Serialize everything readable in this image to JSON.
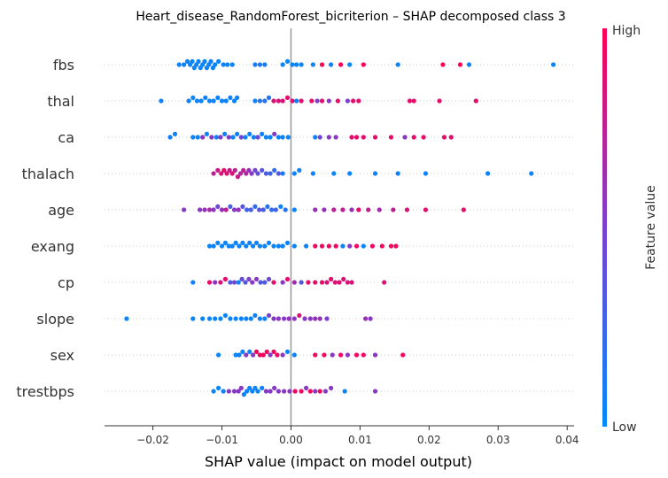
{
  "chart_data": {
    "type": "scatter",
    "subtype": "shap-beeswarm",
    "title": "Heart_disease_RandomForest_bicriterion – SHAP decomposed class 3",
    "xlabel": "SHAP value (impact on model output)",
    "ylabel": "",
    "xlim": [
      -0.027,
      0.041
    ],
    "xticks": [
      -0.02,
      -0.01,
      0.0,
      0.01,
      0.02,
      0.03,
      0.04
    ],
    "xtick_labels": [
      "−0.02",
      "−0.01",
      "0.00",
      "0.01",
      "0.02",
      "0.03",
      "0.04"
    ],
    "grid": false,
    "features": [
      "fbs",
      "thal",
      "ca",
      "thalach",
      "age",
      "exang",
      "cp",
      "slope",
      "sex",
      "trestbps"
    ],
    "colorbar": {
      "label": "Feature value",
      "high_label": "High",
      "low_label": "Low",
      "low_color": "#008bfb",
      "mid_color": "#7b3fd0",
      "high_color": "#ff0052"
    },
    "series": [
      {
        "feature": "fbs",
        "x": [
          -0.0162,
          -0.0155,
          -0.015,
          -0.0146,
          -0.0143,
          -0.014,
          -0.0137,
          -0.0134,
          -0.0131,
          -0.0128,
          -0.0125,
          -0.0122,
          -0.0119,
          -0.0116,
          -0.0113,
          -0.011,
          -0.0105,
          -0.0098,
          -0.0092,
          -0.0085,
          -0.0052,
          -0.0045,
          -0.0038,
          -0.0012,
          -0.0005,
          0.0002,
          0.0008,
          0.0015,
          0.0032,
          0.0045,
          0.0058,
          0.0072,
          0.0085,
          0.0105,
          0.0155,
          0.022,
          0.0245,
          0.0258,
          0.038
        ],
        "v": [
          0.05,
          0.05,
          0.05,
          0.05,
          0.05,
          0.05,
          0.05,
          0.05,
          0.05,
          0.05,
          0.05,
          0.05,
          0.05,
          0.05,
          0.05,
          0.05,
          0.05,
          0.05,
          0.05,
          0.05,
          0.1,
          0.1,
          0.1,
          0.05,
          0.05,
          0.05,
          0.05,
          0.05,
          0.05,
          1,
          0.05,
          1,
          0.05,
          1,
          0.05,
          1,
          1,
          0.05,
          0.05
        ]
      },
      {
        "feature": "thal",
        "x": [
          -0.0188,
          -0.0148,
          -0.0142,
          -0.0136,
          -0.013,
          -0.0124,
          -0.0118,
          -0.0112,
          -0.0106,
          -0.01,
          -0.0094,
          -0.0088,
          -0.0082,
          -0.0078,
          -0.0052,
          -0.0045,
          -0.0038,
          -0.0032,
          -0.0025,
          -0.0018,
          -0.0012,
          -0.0005,
          0.0002,
          0.0008,
          0.0015,
          0.003,
          0.0038,
          0.0045,
          0.0055,
          0.0068,
          0.0082,
          0.009,
          0.0098,
          0.0172,
          0.0178,
          0.0215,
          0.0268
        ],
        "v": [
          0.05,
          0.05,
          0.05,
          0.05,
          0.05,
          0.05,
          0.05,
          0.05,
          0.05,
          0.05,
          0.05,
          0.05,
          0.05,
          0.05,
          0.05,
          0.15,
          0.15,
          0.15,
          0.85,
          0.85,
          0.85,
          0.9,
          0.9,
          0.05,
          0.9,
          0.9,
          0.55,
          0.9,
          0.55,
          0.9,
          0.5,
          0.9,
          0.9,
          0.9,
          0.9,
          0.9,
          0.9
        ]
      },
      {
        "feature": "ca",
        "x": [
          -0.0175,
          -0.0168,
          -0.0142,
          -0.0135,
          -0.0128,
          -0.0122,
          -0.0115,
          -0.0108,
          -0.0102,
          -0.0096,
          -0.009,
          -0.0084,
          -0.0078,
          -0.0072,
          -0.0066,
          -0.006,
          -0.0054,
          -0.0048,
          -0.0042,
          -0.0036,
          -0.003,
          -0.0024,
          -0.0018,
          -0.0012,
          -0.0004,
          0.0035,
          0.0042,
          0.0055,
          0.0065,
          0.0088,
          0.0095,
          0.0105,
          0.0122,
          0.0145,
          0.0165,
          0.0178,
          0.0192,
          0.0222,
          0.0232
        ],
        "v": [
          0.05,
          0.05,
          0.05,
          0.05,
          0.55,
          0.05,
          0.55,
          0.05,
          0.55,
          0.05,
          0.55,
          0.05,
          0.05,
          0.45,
          0.05,
          0.05,
          0.05,
          0.45,
          0.05,
          0.05,
          0.05,
          0.55,
          0.05,
          0.05,
          0.05,
          0.05,
          0.45,
          0.55,
          0.55,
          0.9,
          0.9,
          0.9,
          0.9,
          0.9,
          0.55,
          0.9,
          0.9,
          0.9,
          0.9
        ]
      },
      {
        "feature": "thalach",
        "x": [
          -0.0112,
          -0.0106,
          -0.0101,
          -0.0097,
          -0.0093,
          -0.0089,
          -0.0085,
          -0.0081,
          -0.0077,
          -0.0073,
          -0.0069,
          -0.0065,
          -0.0061,
          -0.0057,
          -0.0052,
          -0.0048,
          -0.0042,
          -0.0036,
          -0.003,
          -0.0024,
          -0.0018,
          -0.0012,
          0.0005,
          0.0012,
          0.0032,
          0.0062,
          0.0085,
          0.0122,
          0.0155,
          0.0195,
          0.0285,
          0.0348
        ],
        "v": [
          0.75,
          0.8,
          0.85,
          0.9,
          0.85,
          0.8,
          0.85,
          0.75,
          0.8,
          0.7,
          0.75,
          0.7,
          0.6,
          0.55,
          0.45,
          0.4,
          0.35,
          0.3,
          0.25,
          0.2,
          0.35,
          0.1,
          0.05,
          0.05,
          0.05,
          0.05,
          0.05,
          0.05,
          0.05,
          0.05,
          0.05,
          0.05
        ]
      },
      {
        "feature": "age",
        "x": [
          -0.0155,
          -0.0132,
          -0.0125,
          -0.0118,
          -0.0112,
          -0.0106,
          -0.01,
          -0.0094,
          -0.0088,
          -0.0082,
          -0.0076,
          -0.007,
          -0.0064,
          -0.0058,
          -0.0052,
          -0.0046,
          -0.004,
          -0.0034,
          -0.0028,
          -0.0022,
          -0.0015,
          -0.0008,
          0.0005,
          0.0035,
          0.0048,
          0.0062,
          0.0075,
          0.0088,
          0.0098,
          0.0112,
          0.0128,
          0.0148,
          0.0168,
          0.0195,
          0.025
        ],
        "v": [
          0.55,
          0.55,
          0.6,
          0.65,
          0.55,
          0.45,
          0.6,
          0.75,
          0.3,
          0.55,
          0.6,
          0.35,
          0.25,
          0.3,
          0.2,
          0.35,
          0.3,
          0.15,
          0.2,
          0.25,
          0.05,
          0.15,
          0.05,
          0.6,
          0.6,
          0.75,
          0.75,
          0.6,
          0.9,
          0.75,
          0.65,
          0.75,
          0.85,
          0.9,
          0.9
        ]
      },
      {
        "feature": "exang",
        "x": [
          -0.0118,
          -0.0112,
          -0.0106,
          -0.01,
          -0.0095,
          -0.009,
          -0.0085,
          -0.008,
          -0.0075,
          -0.007,
          -0.0065,
          -0.006,
          -0.0055,
          -0.005,
          -0.0045,
          -0.0038,
          -0.0032,
          -0.0025,
          -0.0018,
          -0.0012,
          -0.0005,
          0.0005,
          0.0022,
          0.0035,
          0.0045,
          0.0055,
          0.0065,
          0.0075,
          0.0085,
          0.0095,
          0.0105,
          0.0118,
          0.0132,
          0.0145,
          0.0152
        ],
        "v": [
          0.05,
          0.05,
          0.05,
          0.05,
          0.05,
          0.05,
          0.05,
          0.05,
          0.05,
          0.05,
          0.05,
          0.05,
          0.05,
          0.05,
          0.05,
          0.05,
          0.05,
          0.05,
          0.05,
          0.05,
          0.05,
          0.05,
          0.05,
          0.95,
          0.95,
          0.95,
          0.95,
          0.05,
          0.55,
          0.95,
          0.05,
          0.95,
          0.95,
          0.95,
          0.95
        ]
      },
      {
        "feature": "cp",
        "x": [
          -0.0142,
          -0.0118,
          -0.011,
          -0.0102,
          -0.0095,
          -0.0088,
          -0.0082,
          -0.0076,
          -0.0071,
          -0.0066,
          -0.0061,
          -0.0056,
          -0.005,
          -0.0044,
          -0.0038,
          -0.0032,
          -0.0025,
          -0.0012,
          -0.0005,
          0.0005,
          0.0015,
          0.0025,
          0.0035,
          0.0045,
          0.0052,
          0.0058,
          0.0064,
          0.007,
          0.0076,
          0.0082,
          0.0088,
          0.0135
        ],
        "v": [
          0.05,
          0.9,
          0.55,
          0.85,
          0.9,
          0.35,
          0.45,
          0.05,
          0.4,
          0.35,
          0.5,
          0.55,
          0.55,
          0.35,
          0.3,
          0.45,
          0.9,
          0.55,
          0.9,
          0.65,
          0.35,
          0.9,
          0.9,
          0.9,
          0.85,
          0.9,
          0.85,
          0.9,
          0.85,
          0.85,
          0.85,
          0.85
        ]
      },
      {
        "feature": "slope",
        "x": [
          -0.0238,
          -0.0142,
          -0.0128,
          -0.0118,
          -0.011,
          -0.0102,
          -0.0095,
          -0.0088,
          -0.008,
          -0.0072,
          -0.0065,
          -0.0058,
          -0.0052,
          -0.0045,
          -0.0038,
          -0.0032,
          -0.0025,
          -0.0018,
          -0.001,
          -0.0003,
          0.0005,
          0.0012,
          0.002,
          0.0028,
          0.0035,
          0.0042,
          0.0052,
          0.0108,
          0.0115
        ],
        "v": [
          0.05,
          0.05,
          0.05,
          0.05,
          0.05,
          0.05,
          0.05,
          0.05,
          0.05,
          0.05,
          0.05,
          0.05,
          0.05,
          0.05,
          0.05,
          0.5,
          0.55,
          0.55,
          0.55,
          0.6,
          0.55,
          0.85,
          0.55,
          0.55,
          0.6,
          0.6,
          0.5,
          0.6,
          0.55
        ]
      },
      {
        "feature": "sex",
        "x": [
          -0.0105,
          -0.008,
          -0.0075,
          -0.007,
          -0.0065,
          -0.006,
          -0.0055,
          -0.005,
          -0.0045,
          -0.004,
          -0.0035,
          -0.003,
          -0.0025,
          -0.002,
          -0.0012,
          -0.0005,
          0.0005,
          0.0035,
          0.0048,
          0.006,
          0.0072,
          0.0082,
          0.0095,
          0.0105,
          0.0122,
          0.0162
        ],
        "v": [
          0.05,
          0.05,
          0.05,
          0.05,
          0.55,
          0.05,
          0.55,
          0.95,
          0.95,
          0.95,
          0.95,
          0.55,
          0.95,
          0.95,
          0.55,
          0.05,
          0.05,
          0.95,
          0.95,
          0.55,
          0.95,
          0.55,
          0.95,
          0.95,
          0.55,
          0.95
        ]
      },
      {
        "feature": "trestbps",
        "x": [
          -0.0112,
          -0.0105,
          -0.0098,
          -0.009,
          -0.0082,
          -0.0076,
          -0.0072,
          -0.0068,
          -0.0064,
          -0.006,
          -0.0056,
          -0.0052,
          -0.0048,
          -0.0042,
          -0.0036,
          -0.003,
          -0.0024,
          -0.0018,
          -0.001,
          -0.0002,
          0.0006,
          0.0015,
          0.0022,
          0.0028,
          0.0035,
          0.0042,
          0.005,
          0.0058,
          0.0078,
          0.0122
        ],
        "v": [
          0.05,
          0.05,
          0.05,
          0.55,
          0.55,
          0.55,
          0.55,
          0.05,
          0.05,
          0.05,
          0.05,
          0.05,
          0.05,
          0.05,
          0.55,
          0.55,
          0.55,
          0.55,
          0.55,
          0.55,
          0.95,
          0.95,
          0.55,
          0.95,
          0.55,
          0.95,
          0.55,
          0.55,
          0.05,
          0.55
        ]
      }
    ]
  }
}
